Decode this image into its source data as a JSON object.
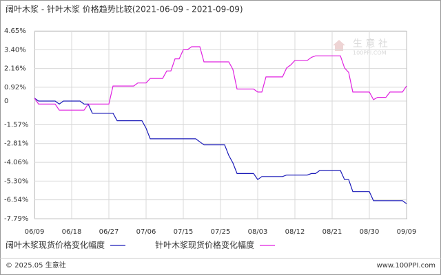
{
  "chart_data": {
    "type": "line",
    "title": "阔叶木浆 - 针叶木浆 价格趋势比较(2021-06-09 - 2021-09-09)",
    "categories": [
      "06/09",
      null,
      null,
      null,
      null,
      null,
      null,
      null,
      null,
      "06/18",
      null,
      null,
      null,
      null,
      null,
      null,
      null,
      null,
      "06/27",
      null,
      null,
      null,
      null,
      null,
      null,
      null,
      null,
      "07/06",
      null,
      null,
      null,
      null,
      null,
      null,
      null,
      null,
      "07/15",
      null,
      null,
      null,
      null,
      null,
      null,
      null,
      null,
      "07/25",
      null,
      null,
      null,
      null,
      null,
      null,
      null,
      null,
      "08/03",
      null,
      null,
      null,
      null,
      null,
      null,
      null,
      null,
      "08/12",
      null,
      null,
      null,
      null,
      null,
      null,
      null,
      null,
      "08/21",
      null,
      null,
      null,
      null,
      null,
      null,
      null,
      null,
      "08/30",
      null,
      null,
      null,
      null,
      null,
      null,
      null,
      null,
      "09/09"
    ],
    "series": [
      {
        "name": "阔叶木浆现货价格变化幅度",
        "color": "#1a1ab8",
        "values": [
          0.2,
          0,
          0,
          0,
          0,
          0,
          -0.2,
          0,
          0,
          0,
          0,
          0,
          -0.2,
          -0.2,
          -0.8,
          -0.8,
          -0.8,
          -0.8,
          -0.8,
          -0.8,
          -1.3,
          -1.3,
          -1.3,
          -1.3,
          -1.3,
          -1.3,
          -1.3,
          -1.8,
          -2.5,
          -2.5,
          -2.5,
          -2.5,
          -2.5,
          -2.5,
          -2.5,
          -2.5,
          -2.5,
          -2.5,
          -2.5,
          -2.5,
          -2.7,
          -2.9,
          -2.9,
          -2.9,
          -2.9,
          -2.9,
          -2.9,
          -3.6,
          -4.1,
          -4.8,
          -4.8,
          -4.8,
          -4.8,
          -4.8,
          -5.2,
          -5.0,
          -5.0,
          -5.0,
          -5.0,
          -5.0,
          -5.0,
          -4.9,
          -4.9,
          -4.9,
          -4.9,
          -4.9,
          -4.9,
          -4.8,
          -4.8,
          -4.6,
          -4.6,
          -4.6,
          -4.6,
          -4.6,
          -4.6,
          -5.2,
          -5.2,
          -6.0,
          -6.0,
          -6.0,
          -6.0,
          -6.0,
          -6.6,
          -6.6,
          -6.6,
          -6.6,
          -6.6,
          -6.6,
          -6.6,
          -6.6,
          -6.8
        ]
      },
      {
        "name": "针叶木浆现货价格变化幅度",
        "color": "#e020e0",
        "values": [
          0.2,
          -0.2,
          -0.2,
          -0.2,
          -0.2,
          -0.2,
          -0.6,
          -0.6,
          -0.6,
          -0.6,
          -0.6,
          -0.6,
          -0.6,
          -0.2,
          -0.2,
          -0.2,
          -0.2,
          -0.2,
          -0.2,
          1.0,
          1.0,
          1.0,
          1.0,
          1.0,
          1.0,
          1.2,
          1.2,
          1.2,
          1.5,
          1.5,
          1.5,
          1.5,
          2.0,
          2.0,
          2.8,
          2.8,
          3.4,
          3.4,
          3.6,
          3.6,
          3.6,
          2.6,
          2.6,
          2.6,
          2.6,
          2.6,
          2.6,
          2.6,
          2.1,
          0.8,
          0.8,
          0.8,
          0.8,
          0.8,
          0.6,
          0.6,
          1.6,
          1.6,
          1.6,
          1.6,
          1.6,
          2.2,
          2.4,
          2.7,
          2.7,
          2.7,
          2.7,
          2.9,
          3.0,
          3.0,
          3.0,
          3.0,
          3.0,
          3.0,
          3.0,
          2.2,
          1.9,
          0.6,
          0.6,
          0.6,
          0.6,
          0.6,
          0.1,
          0.25,
          0.25,
          0.25,
          0.6,
          0.6,
          0.6,
          0.6,
          1.0
        ]
      }
    ],
    "ylim": [
      -7.79,
      4.65
    ],
    "yticks": [
      {
        "value": 4.65,
        "label": "4.65%"
      },
      {
        "value": 3.4,
        "label": "3.40%"
      },
      {
        "value": 2.16,
        "label": "2.16%"
      },
      {
        "value": 0.92,
        "label": "0.92%"
      },
      0,
      {
        "value": -1.57,
        "label": "-1.57%"
      },
      {
        "value": -2.81,
        "label": "-2.81%"
      },
      {
        "value": -4.06,
        "label": "-4.06%"
      },
      {
        "value": -5.3,
        "label": "-5.30%"
      },
      {
        "value": -6.54,
        "label": "-6.54%"
      },
      {
        "value": -7.79,
        "label": "-7.79%"
      }
    ],
    "grid": true,
    "watermark": "生 意 社",
    "watermark_sub": "100PPI.COM",
    "footer_left": "© 2025.05 生意社",
    "footer_right": "www.100PPI.com"
  }
}
